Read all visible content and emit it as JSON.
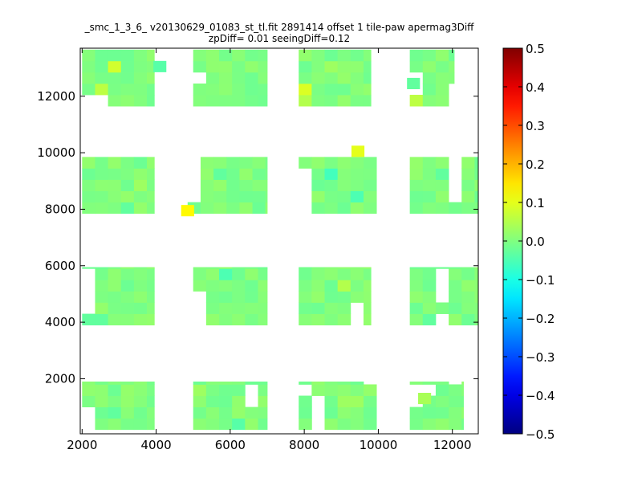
{
  "chart_data": {
    "type": "heatmap",
    "title": {
      "line1": "_smc_1_3_6_ v20130629_01083_st_tl.fit 2891414 offset 1 tile-paw apermag3Diff",
      "line2": "zpDiff= 0.01 seeingDiff=0.12"
    },
    "xlabel": "",
    "ylabel": "",
    "xlim": [
      1950,
      12700
    ],
    "ylim": [
      50,
      13700
    ],
    "xticks": [
      2000,
      4000,
      6000,
      8000,
      10000,
      12000
    ],
    "yticks": [
      2000,
      4000,
      6000,
      8000,
      10000,
      12000
    ],
    "colormap": "jet",
    "colorbar": {
      "range": [
        -0.5,
        0.5
      ],
      "ticks": [
        "0.5",
        "0.4",
        "0.3",
        "0.2",
        "0.1",
        "0.0",
        "−0.1",
        "−0.2",
        "−0.3",
        "−0.4",
        "−0.5"
      ],
      "tick_values": [
        0.5,
        0.4,
        0.3,
        0.2,
        0.1,
        0.0,
        -0.1,
        -0.2,
        -0.3,
        -0.4,
        -0.5
      ]
    },
    "grid": false,
    "cell_size": [
      350,
      400
    ],
    "default_value": 0.0,
    "blocks": [
      {
        "x": [
          2000,
          3950
        ],
        "y": [
          1900,
          200
        ],
        "holes": [
          [
            2000,
            600
          ]
        ],
        "value": 0.0
      },
      {
        "x": [
          2000,
          3950
        ],
        "y": [
          5950,
          3900
        ],
        "holes": [
          [
            2000,
            5500
          ],
          [
            2000,
            4700
          ]
        ],
        "value": 0.0
      },
      {
        "x": [
          2000,
          3950
        ],
        "y": [
          9850,
          7850
        ],
        "value": 0.0
      },
      {
        "x": [
          2000,
          3950
        ],
        "y": [
          13650,
          11650
        ],
        "holes": [
          [
            2000,
            12000
          ],
          [
            2350,
            11700
          ],
          [
            2000,
            11700
          ]
        ],
        "value": 0.0
      },
      {
        "x": [
          5000,
          7000
        ],
        "y": [
          1900,
          200
        ],
        "holes": [
          [
            6700,
            1100
          ],
          [
            6700,
            1500
          ]
        ],
        "value": 0.0
      },
      {
        "x": [
          5000,
          7000
        ],
        "y": [
          5950,
          3900
        ],
        "holes": [
          [
            5000,
            4300
          ],
          [
            5000,
            4700
          ]
        ],
        "value": 0.0
      },
      {
        "x": [
          4850,
          7000
        ],
        "y": [
          9850,
          7850
        ],
        "holes": [
          [
            4850,
            8650
          ],
          [
            4850,
            9050
          ],
          [
            4850,
            9450
          ]
        ],
        "value": 0.0
      },
      {
        "x": [
          5000,
          7000
        ],
        "y": [
          13650,
          11650
        ],
        "holes": [
          [
            5300,
            12800
          ]
        ],
        "value": 0.0
      },
      {
        "x": [
          7850,
          9950
        ],
        "y": [
          1900,
          200
        ],
        "holes": [
          [
            8200,
            600
          ],
          [
            8200,
            1000
          ],
          [
            7850,
            1500
          ],
          [
            9600,
            1900
          ]
        ],
        "value": 0.0
      },
      {
        "x": [
          7850,
          9800
        ],
        "y": [
          5950,
          3900
        ],
        "holes": [
          [
            9450,
            4300
          ],
          [
            9450,
            3950
          ]
        ],
        "value": 0.0
      },
      {
        "x": [
          7850,
          9950
        ],
        "y": [
          9850,
          7850
        ],
        "holes": [
          [
            7850,
            9050
          ],
          [
            7850,
            8250
          ]
        ],
        "value": 0.0
      },
      {
        "x": [
          7850,
          9800
        ],
        "y": [
          13650,
          11650
        ],
        "value": 0.0
      },
      {
        "x": [
          10850,
          12300
        ],
        "y": [
          1900,
          200
        ],
        "holes": [
          [
            10850,
            1100
          ],
          [
            10850,
            1500
          ],
          [
            11200,
            1500
          ],
          [
            12100,
            1900
          ]
        ],
        "value": 0.0
      },
      {
        "x": [
          10850,
          12700
        ],
        "y": [
          5950,
          3900
        ],
        "holes": [
          [
            11850,
            5550
          ],
          [
            11850,
            5150
          ],
          [
            11850,
            4750
          ],
          [
            11550,
            3950
          ]
        ],
        "value": 0.0
      },
      {
        "x": [
          10850,
          12700
        ],
        "y": [
          9850,
          7850
        ],
        "holes": [
          [
            12050,
            9450
          ],
          [
            12050,
            9050
          ],
          [
            12050,
            8650
          ]
        ],
        "value": 0.0
      },
      {
        "x": [
          10850,
          12050
        ],
        "y": [
          13650,
          11650
        ],
        "holes": [
          [
            10850,
            12450
          ],
          [
            11900,
            12050
          ]
        ],
        "value": 0.0
      }
    ],
    "cells": [
      {
        "x": 9450,
        "y": 10050,
        "value": 0.1
      },
      {
        "x": 4850,
        "y": 7950,
        "value": 0.13
      },
      {
        "x": 2750,
        "y": 13050,
        "value": 0.08
      },
      {
        "x": 2350,
        "y": 12050,
        "value": 0.06
      },
      {
        "x": 8050,
        "y": 12050,
        "value": 0.09
      },
      {
        "x": 8050,
        "y": 11800,
        "value": 0.05
      },
      {
        "x": 10950,
        "y": 11800,
        "value": 0.06
      },
      {
        "x": 9250,
        "y": 5350,
        "value": 0.05
      },
      {
        "x": 8650,
        "y": 9250,
        "value": -0.06
      },
      {
        "x": 9450,
        "y": 8650,
        "value": -0.05
      },
      {
        "x": 6100,
        "y": 5750,
        "value": -0.05
      },
      {
        "x": 4100,
        "y": 13050,
        "value": -0.04
      },
      {
        "x": 6350,
        "y": 400,
        "value": -0.04
      },
      {
        "x": 3250,
        "y": 8050,
        "value": -0.03
      },
      {
        "x": 2450,
        "y": 4350,
        "value": -0.03
      },
      {
        "x": 2050,
        "y": 4050,
        "value": -0.03
      },
      {
        "x": 10950,
        "y": 12450,
        "value": -0.03
      },
      {
        "x": 11550,
        "y": 9450,
        "value": -0.03
      },
      {
        "x": 11050,
        "y": 4350,
        "value": -0.03
      },
      {
        "x": 2750,
        "y": 600,
        "value": -0.03
      },
      {
        "x": 5750,
        "y": 9450,
        "value": -0.03
      },
      {
        "x": 3650,
        "y": 9050,
        "value": 0.03
      },
      {
        "x": 5350,
        "y": 1500,
        "value": 0.03
      },
      {
        "x": 8750,
        "y": 12850,
        "value": 0.03
      },
      {
        "x": 9050,
        "y": 1100,
        "value": 0.03
      },
      {
        "x": 11250,
        "y": 1300,
        "value": 0.04
      },
      {
        "x": 9500,
        "y": 900,
        "value": 0.03
      },
      {
        "x": 3250,
        "y": 1500,
        "value": 0.02
      }
    ]
  }
}
